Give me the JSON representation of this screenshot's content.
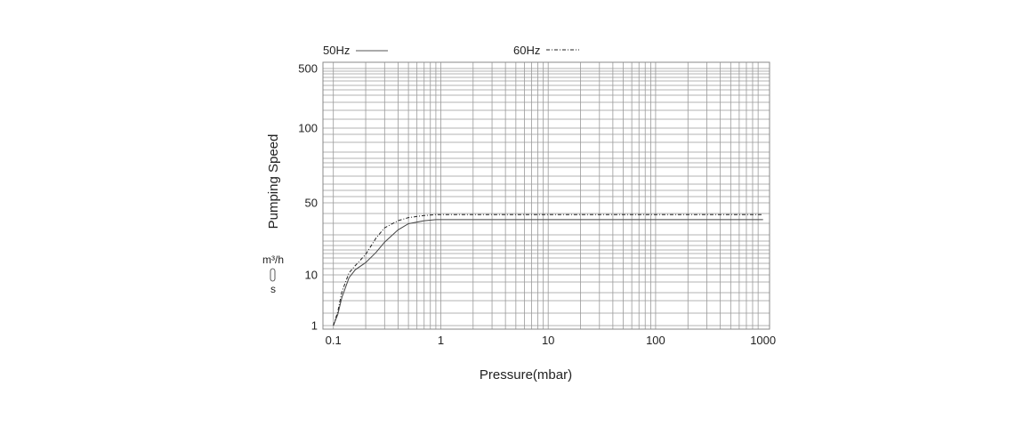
{
  "chart_data": {
    "type": "line",
    "xlabel": "Pressure(mbar)",
    "ylabel": "Pumping Speed",
    "x_scale": "log",
    "xlim": [
      0.08,
      1150
    ],
    "x_ticks": [
      0.1,
      1,
      10,
      100,
      1000
    ],
    "x_tick_labels": [
      "0.1",
      "1",
      "10",
      "100",
      "1000"
    ],
    "y_ticks": [
      1,
      10,
      40,
      50,
      100,
      500
    ],
    "y_tick_labels": [
      "1",
      "10",
      "",
      "50",
      "100",
      "500"
    ],
    "y_tick_label_text": [
      "1",
      "10",
      "50",
      "100",
      "500"
    ],
    "units": {
      "top": "m³/h",
      "bottom": "s"
    },
    "grid": true,
    "legend": "top",
    "series": [
      {
        "name": "50Hz",
        "style": "solid",
        "color": "#444444",
        "x": [
          0.1,
          0.11,
          0.12,
          0.14,
          0.16,
          0.2,
          0.25,
          0.3,
          0.4,
          0.5,
          0.7,
          0.9,
          1,
          10,
          100,
          1000
        ],
        "y": [
          1,
          3,
          6,
          9.5,
          12.5,
          16,
          21,
          26,
          32,
          35,
          36.5,
          37,
          37,
          37,
          37,
          37
        ]
      },
      {
        "name": "60Hz",
        "style": "dash-dot",
        "color": "#222222",
        "x": [
          0.1,
          0.11,
          0.12,
          0.14,
          0.16,
          0.2,
          0.25,
          0.3,
          0.4,
          0.5,
          0.7,
          0.9,
          1,
          10,
          100,
          1000
        ],
        "y": [
          1,
          3.5,
          7,
          11,
          14.5,
          20,
          28,
          33,
          36.5,
          38,
          39,
          39.5,
          39.5,
          39.5,
          39.5,
          39.5
        ]
      }
    ]
  }
}
